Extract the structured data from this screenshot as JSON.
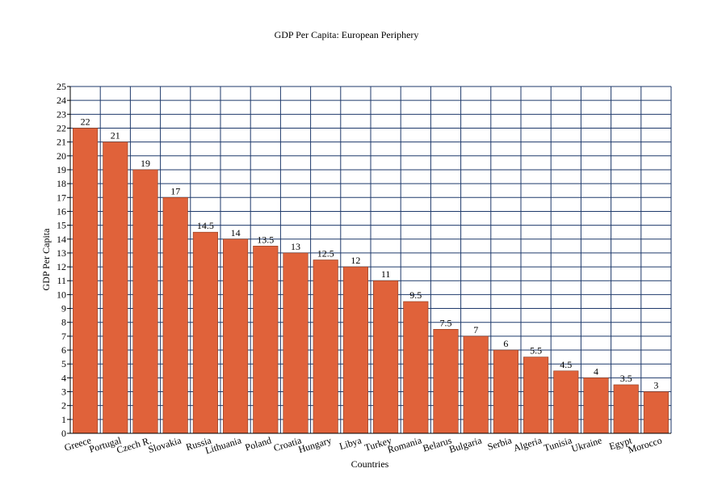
{
  "chart_data": {
    "type": "bar",
    "title": "GDP Per Capita: European Periphery",
    "xlabel": "Countries",
    "ylabel": "GDP Per Capita",
    "ylim": [
      0,
      25
    ],
    "grid": true,
    "bar_color": "#e0623a",
    "grid_color": "#1f3a6b",
    "categories": [
      "Greece",
      "Portugal",
      "Czech R.",
      "Slovakia",
      "Russia",
      "Lithuania",
      "Poland",
      "Croatia",
      "Hungary",
      "Libya",
      "Turkey",
      "Romania",
      "Belarus",
      "Bulgaria",
      "Serbia",
      "Algeria",
      "Tunisia",
      "Ukraine",
      "Egypt",
      "Morocco"
    ],
    "values": [
      22,
      21,
      19,
      17,
      14.5,
      14,
      13.5,
      13,
      12.5,
      12,
      11,
      9.5,
      7.5,
      7,
      6,
      5.5,
      4.5,
      4,
      3.5,
      3
    ]
  }
}
